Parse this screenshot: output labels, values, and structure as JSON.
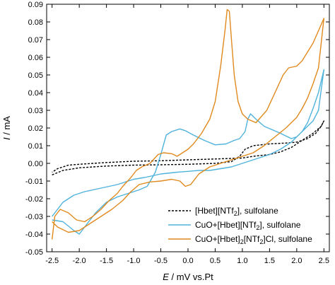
{
  "chart_data": {
    "type": "line",
    "xlabel": "E / mV vs.Pt",
    "ylabel": "I / mA",
    "xlim": [
      -2.6,
      2.6
    ],
    "ylim": [
      -0.05,
      0.09
    ],
    "xticks": [
      "-2.5",
      "-2.0",
      "-1.5",
      "-1.0",
      "-0.5",
      "0.0",
      "0.5",
      "1.0",
      "1.5",
      "2.0",
      "2.5"
    ],
    "yticks": [
      "-0.05",
      "-0.04",
      "-0.03",
      "-0.02",
      "-0.01",
      "0.00",
      "0.01",
      "0.02",
      "0.03",
      "0.04",
      "0.05",
      "0.06",
      "0.07",
      "0.08",
      "0.09"
    ],
    "grid": false,
    "legend_position": "bottom-right",
    "series": [
      {
        "name": "[Hbet][NTf2], sulfolane",
        "color": "#000000",
        "style": "dashed",
        "legend": {
          "pre": "[Hbet][NTf",
          "sub": "2",
          "post": "], sulfolane"
        },
        "points": [
          [
            -2.5,
            -0.0065
          ],
          [
            -2.3,
            -0.004
          ],
          [
            -2.0,
            -0.0025
          ],
          [
            -1.5,
            -0.0015
          ],
          [
            -1.0,
            -0.001
          ],
          [
            -0.5,
            -0.0008
          ],
          [
            0.0,
            -0.0005
          ],
          [
            0.5,
            0.0
          ],
          [
            0.8,
            0.001
          ],
          [
            0.95,
            0.004
          ],
          [
            1.05,
            0.008
          ],
          [
            1.2,
            0.01
          ],
          [
            1.5,
            0.011
          ],
          [
            1.8,
            0.0115
          ],
          [
            2.0,
            0.012
          ],
          [
            2.2,
            0.014
          ],
          [
            2.35,
            0.017
          ],
          [
            2.45,
            0.021
          ],
          [
            2.5,
            0.024
          ],
          [
            2.45,
            0.021
          ],
          [
            2.3,
            0.017
          ],
          [
            2.1,
            0.013
          ],
          [
            1.9,
            0.009
          ],
          [
            1.7,
            0.0065
          ],
          [
            1.5,
            0.005
          ],
          [
            1.2,
            0.004
          ],
          [
            1.0,
            0.003
          ],
          [
            0.5,
            0.0025
          ],
          [
            0.0,
            0.002
          ],
          [
            -0.5,
            0.0015
          ],
          [
            -1.0,
            0.0012
          ],
          [
            -1.5,
            0.0005
          ],
          [
            -2.0,
            -0.0005
          ],
          [
            -2.2,
            -0.001
          ],
          [
            -2.4,
            -0.003
          ],
          [
            -2.5,
            -0.005
          ]
        ]
      },
      {
        "name": "CuO+[Hbet][NTf2], sulfolane",
        "color": "#4fb3dc",
        "style": "solid",
        "legend": {
          "pre": "CuO+[Hbet][NTf",
          "sub": "2",
          "post": "], sulfolane"
        },
        "points": [
          [
            -2.5,
            -0.032
          ],
          [
            -2.3,
            -0.033
          ],
          [
            -2.1,
            -0.038
          ],
          [
            -2.0,
            -0.04
          ],
          [
            -1.9,
            -0.036
          ],
          [
            -1.7,
            -0.028
          ],
          [
            -1.5,
            -0.022
          ],
          [
            -1.3,
            -0.019
          ],
          [
            -1.1,
            -0.017
          ],
          [
            -0.9,
            -0.015
          ],
          [
            -0.75,
            -0.013
          ],
          [
            -0.6,
            -0.005
          ],
          [
            -0.5,
            0.005
          ],
          [
            -0.4,
            0.016
          ],
          [
            -0.3,
            0.018
          ],
          [
            -0.15,
            0.0195
          ],
          [
            -0.05,
            0.0185
          ],
          [
            0.1,
            0.016
          ],
          [
            0.3,
            0.013
          ],
          [
            0.5,
            0.0105
          ],
          [
            0.7,
            0.011
          ],
          [
            0.85,
            0.013
          ],
          [
            0.95,
            0.014
          ],
          [
            1.05,
            0.018
          ],
          [
            1.1,
            0.025
          ],
          [
            1.15,
            0.028
          ],
          [
            1.25,
            0.025
          ],
          [
            1.4,
            0.021
          ],
          [
            1.7,
            0.017
          ],
          [
            1.9,
            0.014
          ],
          [
            2.0,
            0.015
          ],
          [
            2.1,
            0.018
          ],
          [
            2.2,
            0.023
          ],
          [
            2.3,
            0.031
          ],
          [
            2.4,
            0.04
          ],
          [
            2.5,
            0.053
          ],
          [
            2.4,
            0.03
          ],
          [
            2.3,
            0.024
          ],
          [
            2.1,
            0.018
          ],
          [
            1.9,
            0.012
          ],
          [
            1.7,
            0.008
          ],
          [
            1.5,
            0.005
          ],
          [
            1.2,
            0.002
          ],
          [
            1.0,
            0.0
          ],
          [
            0.8,
            -0.002
          ],
          [
            0.6,
            -0.003
          ],
          [
            0.4,
            -0.004
          ],
          [
            0.2,
            -0.004
          ],
          [
            0.0,
            -0.0045
          ],
          [
            -0.2,
            -0.005
          ],
          [
            -0.5,
            -0.006
          ],
          [
            -0.8,
            -0.008
          ],
          [
            -1.0,
            -0.009
          ],
          [
            -1.3,
            -0.012
          ],
          [
            -1.6,
            -0.014
          ],
          [
            -1.9,
            -0.016
          ],
          [
            -2.1,
            -0.018
          ],
          [
            -2.3,
            -0.022
          ],
          [
            -2.5,
            -0.03
          ]
        ]
      },
      {
        "name": "CuO+[Hbet]2[NTf2]Cl, sulfolane",
        "color": "#e08a1e",
        "style": "solid",
        "legend": {
          "pre": "CuO+[Hbet]",
          "sub": "2",
          "mid": "[NTf",
          "sub2": "2",
          "post": "]Cl, sulfolane"
        },
        "points": [
          [
            -2.5,
            -0.043
          ],
          [
            -2.45,
            -0.03
          ],
          [
            -2.35,
            -0.026
          ],
          [
            -2.2,
            -0.028
          ],
          [
            -2.05,
            -0.032
          ],
          [
            -1.9,
            -0.033
          ],
          [
            -1.75,
            -0.03
          ],
          [
            -1.6,
            -0.026
          ],
          [
            -1.45,
            -0.021
          ],
          [
            -1.3,
            -0.017
          ],
          [
            -1.2,
            -0.013
          ],
          [
            -1.05,
            -0.008
          ],
          [
            -0.95,
            -0.004
          ],
          [
            -0.85,
            -0.002
          ],
          [
            -0.7,
            0.0
          ],
          [
            -0.55,
            0.005
          ],
          [
            -0.45,
            0.006
          ],
          [
            -0.3,
            0.0055
          ],
          [
            -0.2,
            0.004
          ],
          [
            -0.1,
            0.006
          ],
          [
            0.0,
            0.008
          ],
          [
            0.1,
            0.011
          ],
          [
            0.25,
            0.017
          ],
          [
            0.4,
            0.025
          ],
          [
            0.5,
            0.035
          ],
          [
            0.6,
            0.055
          ],
          [
            0.68,
            0.075
          ],
          [
            0.72,
            0.087
          ],
          [
            0.76,
            0.086
          ],
          [
            0.8,
            0.07
          ],
          [
            0.85,
            0.05
          ],
          [
            0.92,
            0.035
          ],
          [
            1.0,
            0.028
          ],
          [
            1.1,
            0.025
          ],
          [
            1.25,
            0.023
          ],
          [
            1.45,
            0.03
          ],
          [
            1.6,
            0.04
          ],
          [
            1.75,
            0.05
          ],
          [
            1.85,
            0.054
          ],
          [
            2.0,
            0.055
          ],
          [
            2.1,
            0.058
          ],
          [
            2.2,
            0.063
          ],
          [
            2.3,
            0.068
          ],
          [
            2.4,
            0.075
          ],
          [
            2.5,
            0.082
          ],
          [
            2.4,
            0.054
          ],
          [
            2.3,
            0.045
          ],
          [
            2.2,
            0.037
          ],
          [
            2.1,
            0.031
          ],
          [
            2.0,
            0.026
          ],
          [
            1.8,
            0.02
          ],
          [
            1.6,
            0.015
          ],
          [
            1.4,
            0.01
          ],
          [
            1.2,
            0.006
          ],
          [
            1.0,
            0.004
          ],
          [
            0.8,
            0.002
          ],
          [
            0.6,
            0.0
          ],
          [
            0.4,
            -0.002
          ],
          [
            0.2,
            -0.006
          ],
          [
            0.05,
            -0.012
          ],
          [
            -0.05,
            -0.013
          ],
          [
            -0.15,
            -0.01
          ],
          [
            -0.3,
            -0.009
          ],
          [
            -0.5,
            -0.01
          ],
          [
            -0.7,
            -0.0105
          ],
          [
            -0.9,
            -0.012
          ],
          [
            -1.05,
            -0.016
          ],
          [
            -1.2,
            -0.021
          ],
          [
            -1.4,
            -0.026
          ],
          [
            -1.6,
            -0.03
          ],
          [
            -1.8,
            -0.034
          ],
          [
            -2.0,
            -0.038
          ],
          [
            -2.2,
            -0.039
          ],
          [
            -2.4,
            -0.036
          ],
          [
            -2.5,
            -0.033
          ]
        ]
      }
    ]
  }
}
